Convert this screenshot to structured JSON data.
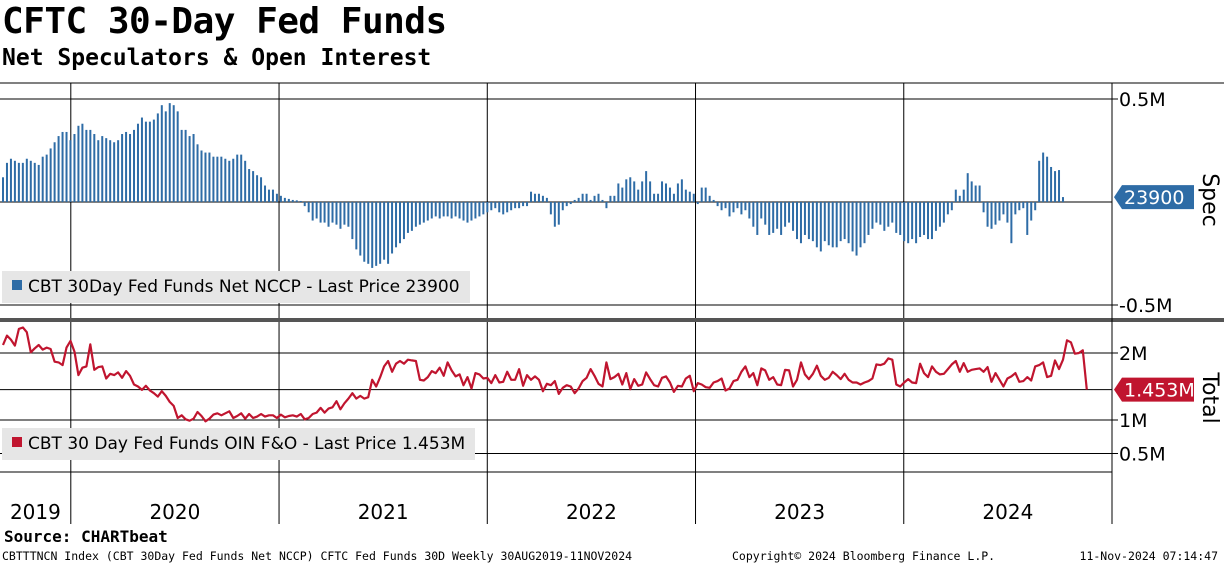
{
  "title": "CFTC 30-Day Fed Funds",
  "subtitle": "Net Speculators & Open Interest",
  "source": "Source: CHARTbeat",
  "footer": {
    "description": "CBTTTNCN Index (CBT 30Day Fed Funds Net NCCP) CFTC Fed Funds 30D  Weekly 30AUG2019-11NOV2024",
    "copyright": "Copyright© 2024 Bloomberg Finance L.P.",
    "date": "11-Nov-2024 07:14:47"
  },
  "colors": {
    "spec": "#2e6ca6",
    "total": "#c0152f",
    "legend_bg": "#e6e6e6",
    "grid": "#000000"
  },
  "chart_data": [
    {
      "type": "bar",
      "name": "Spec",
      "legend": "CBT 30Day Fed Funds Net NCCP - Last Price 23900",
      "axis_label": "Spec",
      "ytick_labels": [
        "0.5M",
        "-0.5M"
      ],
      "yticks": [
        500000,
        -500000
      ],
      "ylim": [
        -500000,
        500000
      ],
      "last_value": 23900,
      "last_label": "23900",
      "x_start": 2019.66,
      "x_step_weeks": 1,
      "values": [
        120000,
        190000,
        210000,
        200000,
        190000,
        190000,
        210000,
        200000,
        190000,
        180000,
        220000,
        230000,
        260000,
        290000,
        320000,
        340000,
        340000,
        300000,
        330000,
        370000,
        380000,
        350000,
        350000,
        330000,
        300000,
        320000,
        310000,
        300000,
        290000,
        300000,
        330000,
        340000,
        330000,
        350000,
        380000,
        410000,
        390000,
        390000,
        400000,
        430000,
        470000,
        440000,
        480000,
        470000,
        440000,
        350000,
        350000,
        320000,
        330000,
        280000,
        250000,
        240000,
        240000,
        220000,
        220000,
        220000,
        210000,
        200000,
        210000,
        230000,
        230000,
        200000,
        160000,
        150000,
        130000,
        120000,
        80000,
        60000,
        60000,
        40000,
        30000,
        20000,
        15000,
        10000,
        8000,
        5000,
        -20000,
        -50000,
        -90000,
        -80000,
        -100000,
        -100000,
        -120000,
        -100000,
        -110000,
        -130000,
        -110000,
        -120000,
        -180000,
        -230000,
        -260000,
        -290000,
        -300000,
        -320000,
        -310000,
        -300000,
        -280000,
        -300000,
        -250000,
        -220000,
        -200000,
        -180000,
        -150000,
        -140000,
        -120000,
        -110000,
        -100000,
        -90000,
        -80000,
        -70000,
        -80000,
        -70000,
        -70000,
        -80000,
        -70000,
        -80000,
        -90000,
        -100000,
        -90000,
        -80000,
        -70000,
        -60000,
        -50000,
        -40000,
        -30000,
        -50000,
        -60000,
        -50000,
        -40000,
        -30000,
        -30000,
        -20000,
        -20000,
        50000,
        40000,
        40000,
        30000,
        20000,
        -60000,
        -120000,
        -110000,
        -40000,
        -20000,
        -10000,
        10000,
        20000,
        40000,
        40000,
        10000,
        30000,
        40000,
        10000,
        -30000,
        30000,
        30000,
        90000,
        70000,
        110000,
        120000,
        100000,
        60000,
        100000,
        150000,
        100000,
        40000,
        40000,
        100000,
        90000,
        70000,
        40000,
        90000,
        110000,
        60000,
        50000,
        40000,
        -10000,
        70000,
        70000,
        30000,
        10000,
        -20000,
        -40000,
        -30000,
        -70000,
        -50000,
        -30000,
        -60000,
        -40000,
        -80000,
        -120000,
        -160000,
        -80000,
        -110000,
        -160000,
        -150000,
        -130000,
        -160000,
        -120000,
        -100000,
        -140000,
        -180000,
        -200000,
        -160000,
        -180000,
        -190000,
        -220000,
        -240000,
        -190000,
        -210000,
        -220000,
        -220000,
        -190000,
        -180000,
        -200000,
        -240000,
        -260000,
        -220000,
        -200000,
        -160000,
        -130000,
        -100000,
        -110000,
        -140000,
        -120000,
        -100000,
        -150000,
        -160000,
        -190000,
        -200000,
        -180000,
        -200000,
        -170000,
        -160000,
        -180000,
        -180000,
        -140000,
        -120000,
        -100000,
        -60000,
        -40000,
        60000,
        30000,
        60000,
        140000,
        100000,
        80000,
        80000,
        -50000,
        -120000,
        -130000,
        -110000,
        -90000,
        -60000,
        -100000,
        -200000,
        -60000,
        -40000,
        -30000,
        -160000,
        -90000,
        -40000,
        200000,
        240000,
        220000,
        170000,
        150000,
        155000,
        23900
      ]
    },
    {
      "type": "line",
      "name": "Total",
      "legend": "CBT 30 Day Fed Funds OIN F&O - Last Price 1.453M",
      "axis_label": "Total",
      "ytick_labels": [
        "2M",
        "1M",
        "0.5M"
      ],
      "yticks": [
        2000000,
        1000000,
        500000
      ],
      "ylim": [
        400000,
        2420000
      ],
      "last_value": 1453000,
      "last_label": "1.453M",
      "x_start": 2019.66,
      "x_step_weeks": 1,
      "values": [
        2120000,
        2260000,
        2200000,
        2110000,
        2360000,
        2380000,
        2310000,
        2010000,
        2070000,
        2120000,
        2050000,
        2080000,
        2060000,
        1870000,
        1860000,
        1820000,
        2080000,
        2180000,
        2020000,
        1670000,
        1780000,
        1800000,
        2130000,
        1750000,
        1790000,
        1800000,
        1620000,
        1690000,
        1670000,
        1710000,
        1630000,
        1730000,
        1660000,
        1530000,
        1500000,
        1450000,
        1510000,
        1440000,
        1400000,
        1350000,
        1430000,
        1360000,
        1270000,
        1210000,
        1030000,
        1070000,
        1010000,
        990000,
        1020000,
        1120000,
        1060000,
        980000,
        1020000,
        1080000,
        1100000,
        1070000,
        1100000,
        1130000,
        1030000,
        1060000,
        1100000,
        1020000,
        1090000,
        1030000,
        1050000,
        1090000,
        1050000,
        1070000,
        1070000,
        1030000,
        1080000,
        1040000,
        1060000,
        1070000,
        1050000,
        1090000,
        1010000,
        1030000,
        1090000,
        1110000,
        1180000,
        1110000,
        1170000,
        1190000,
        1280000,
        1160000,
        1250000,
        1320000,
        1400000,
        1320000,
        1360000,
        1320000,
        1340000,
        1600000,
        1500000,
        1640000,
        1800000,
        1880000,
        1720000,
        1840000,
        1880000,
        1840000,
        1900000,
        1890000,
        1880000,
        1600000,
        1590000,
        1640000,
        1730000,
        1700000,
        1780000,
        1660000,
        1860000,
        1740000,
        1650000,
        1680000,
        1520000,
        1640000,
        1470000,
        1700000,
        1680000,
        1620000,
        1630000,
        1550000,
        1670000,
        1560000,
        1570000,
        1720000,
        1600000,
        1600000,
        1760000,
        1510000,
        1670000,
        1600000,
        1650000,
        1600000,
        1430000,
        1540000,
        1520000,
        1580000,
        1390000,
        1480000,
        1520000,
        1500000,
        1400000,
        1470000,
        1580000,
        1630000,
        1760000,
        1660000,
        1540000,
        1500000,
        1860000,
        1610000,
        1640000,
        1690000,
        1530000,
        1700000,
        1460000,
        1610000,
        1510000,
        1530000,
        1710000,
        1610000,
        1520000,
        1500000,
        1630000,
        1650000,
        1560000,
        1420000,
        1510000,
        1500000,
        1620000,
        1660000,
        1430000,
        1550000,
        1530000,
        1490000,
        1480000,
        1560000,
        1580000,
        1620000,
        1440000,
        1470000,
        1580000,
        1600000,
        1720000,
        1800000,
        1640000,
        1700000,
        1520000,
        1770000,
        1740000,
        1600000,
        1640000,
        1530000,
        1520000,
        1750000,
        1740000,
        1500000,
        1600000,
        1860000,
        1680000,
        1610000,
        1690000,
        1810000,
        1660000,
        1600000,
        1630000,
        1720000,
        1670000,
        1610000,
        1690000,
        1600000,
        1560000,
        1560000,
        1530000,
        1560000,
        1580000,
        1620000,
        1830000,
        1820000,
        1840000,
        1920000,
        1900000,
        1530000,
        1500000,
        1560000,
        1610000,
        1560000,
        1550000,
        1840000,
        1700000,
        1640000,
        1800000,
        1720000,
        1680000,
        1690000,
        1760000,
        1830000,
        1880000,
        1720000,
        1850000,
        1720000,
        1750000,
        1760000,
        1770000,
        1720000,
        1790000,
        1570000,
        1700000,
        1600000,
        1500000,
        1620000,
        1650000,
        1700000,
        1570000,
        1580000,
        1640000,
        1590000,
        1800000,
        1820000,
        1860000,
        1640000,
        1660000,
        1890000,
        1760000,
        1900000,
        2190000,
        2160000,
        1990000,
        2000000,
        2040000,
        1453000
      ]
    }
  ],
  "x_axis": {
    "labels": [
      "2019",
      "2020",
      "2021",
      "2022",
      "2023",
      "2024"
    ],
    "boundaries": [
      2020,
      2021,
      2022,
      2023,
      2024
    ],
    "xlim": [
      2019.66,
      2025.0
    ]
  }
}
